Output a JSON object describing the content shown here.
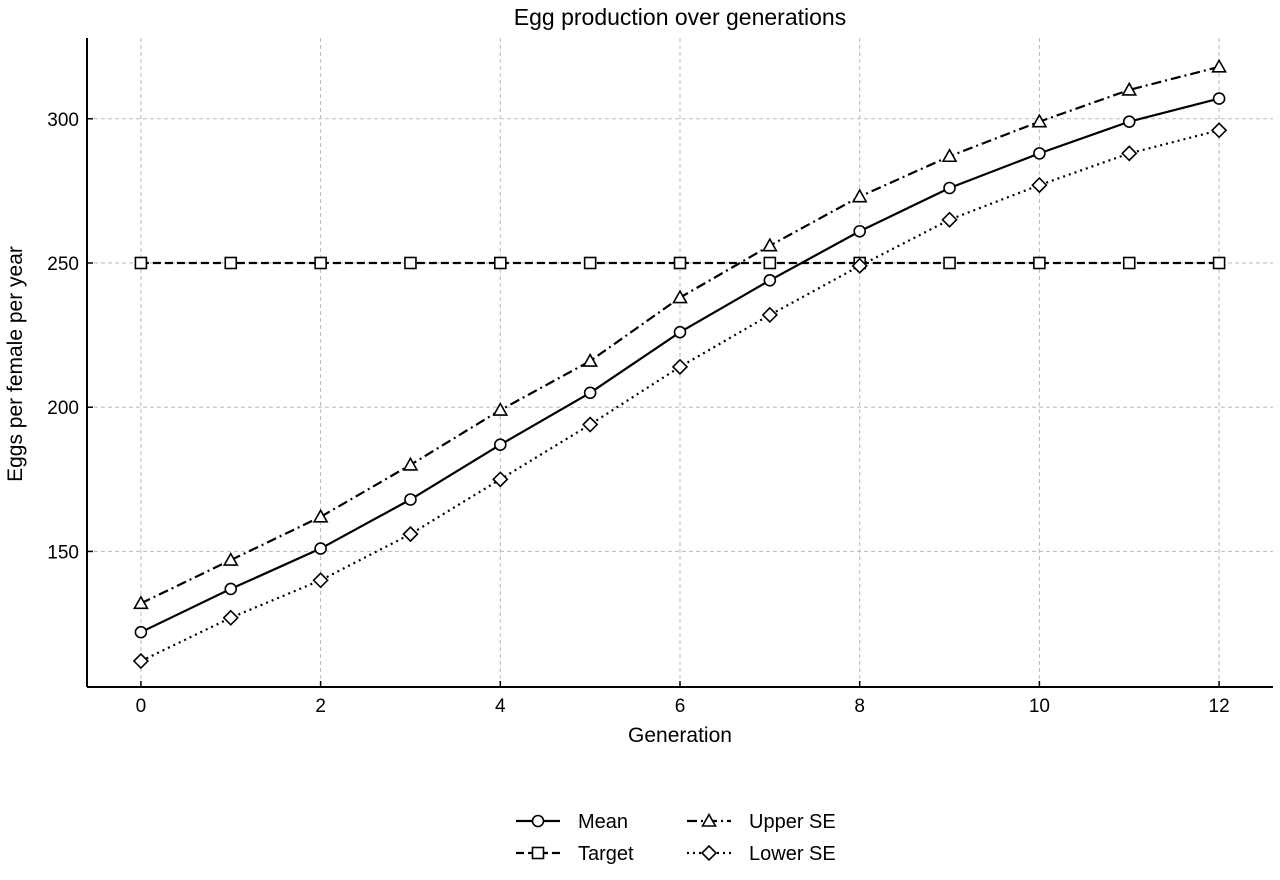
{
  "chart_data": {
    "type": "line",
    "title": "Egg production over generations",
    "xlabel": "Generation",
    "ylabel": "Eggs per female per year",
    "xlim": [
      -0.6,
      12.6
    ],
    "ylim": [
      103,
      328
    ],
    "x_ticks": [
      0,
      2,
      4,
      6,
      8,
      10,
      12
    ],
    "y_ticks": [
      150,
      200,
      250,
      300
    ],
    "grid": true,
    "legend_position": "bottom-center",
    "x": [
      0,
      1,
      2,
      3,
      4,
      5,
      6,
      7,
      8,
      9,
      10,
      11,
      12
    ],
    "series": [
      {
        "name": "Mean",
        "marker": "circle",
        "linestyle": "solid",
        "color": "#000000",
        "values": [
          122,
          137,
          151,
          168,
          187,
          205,
          226,
          244,
          261,
          276,
          288,
          299,
          307
        ]
      },
      {
        "name": "Target",
        "marker": "square",
        "linestyle": "dashed",
        "color": "#000000",
        "values": [
          250,
          250,
          250,
          250,
          250,
          250,
          250,
          250,
          250,
          250,
          250,
          250,
          250
        ]
      },
      {
        "name": "Upper SE",
        "marker": "triangle",
        "linestyle": "dashdot",
        "color": "#000000",
        "values": [
          132,
          147,
          162,
          180,
          199,
          216,
          238,
          256,
          273,
          287,
          299,
          310,
          318
        ]
      },
      {
        "name": "Lower SE",
        "marker": "diamond",
        "linestyle": "dotted",
        "color": "#000000",
        "values": [
          112,
          127,
          140,
          156,
          175,
          194,
          214,
          232,
          249,
          265,
          277,
          288,
          296
        ]
      }
    ]
  }
}
